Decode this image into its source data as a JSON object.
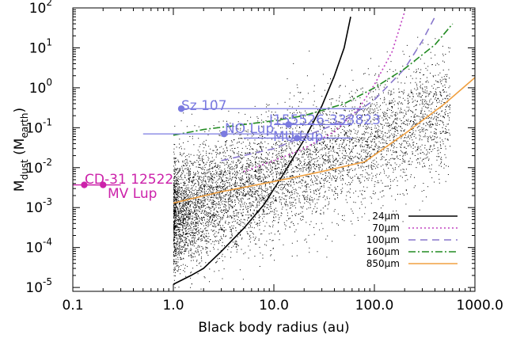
{
  "chart_data": {
    "type": "scatter",
    "x_scale": "log",
    "y_scale": "log",
    "xlim": [
      0.1,
      1000
    ],
    "ylim": [
      8e-06,
      100
    ],
    "xlabel_parts": {
      "main": "Black body radius (au)"
    },
    "ylabel_parts": {
      "main": "M",
      "sub1": "dust",
      "paren_open": " (M",
      "sub2": "earth",
      "paren_close": ")"
    },
    "xticks": [
      {
        "value": 0.1,
        "label": "0.1"
      },
      {
        "value": 1,
        "label": "1.0"
      },
      {
        "value": 10,
        "label": "10.0"
      },
      {
        "value": 100,
        "label": "100.0"
      },
      {
        "value": 1000,
        "label": "1000.0"
      }
    ],
    "yticks": [
      {
        "value": 1e-05,
        "base": "10",
        "exp": "-5"
      },
      {
        "value": 0.0001,
        "base": "10",
        "exp": "-4"
      },
      {
        "value": 0.001,
        "base": "10",
        "exp": "-3"
      },
      {
        "value": 0.01,
        "base": "10",
        "exp": "-2"
      },
      {
        "value": 0.1,
        "base": "10",
        "exp": "-1"
      },
      {
        "value": 1,
        "base": "10",
        "exp": "0"
      },
      {
        "value": 10,
        "base": "10",
        "exp": "1"
      },
      {
        "value": 100,
        "base": "10",
        "exp": "2"
      }
    ],
    "legend": [
      {
        "label": "24μm",
        "color": "#000000",
        "dash": ""
      },
      {
        "label": "70μm",
        "color": "#c040c0",
        "dash": "2,3"
      },
      {
        "label": "100μm",
        "color": "#8877cc",
        "dash": "9,6"
      },
      {
        "label": "160μm",
        "color": "#228b22",
        "dash": "9,3,2,3"
      },
      {
        "label": "850μm",
        "color": "#f0a040",
        "dash": ""
      }
    ],
    "sensitivity_curves": [
      {
        "name": "24μm",
        "color": "#000000",
        "dash": "",
        "x": [
          1.0,
          1.5,
          2.0,
          3.0,
          5.0,
          8.0,
          12.0,
          20.0,
          30.0,
          40.0,
          50.0,
          58.0
        ],
        "y": [
          1.2e-05,
          2e-05,
          3e-05,
          8e-05,
          0.0003,
          0.0012,
          0.006,
          0.05,
          0.35,
          2.0,
          10,
          60
        ]
      },
      {
        "name": "70μm",
        "color": "#c040c0",
        "dash": "2,3",
        "x": [
          5.0,
          10.0,
          20.0,
          40.0,
          70.0,
          100.0,
          150.0,
          200.0
        ],
        "y": [
          0.008,
          0.015,
          0.03,
          0.08,
          0.3,
          1.2,
          8,
          80
        ]
      },
      {
        "name": "100μm",
        "color": "#8877cc",
        "dash": "9,6",
        "x": [
          3.0,
          10.0,
          20.0,
          50.0,
          100.0,
          200.0,
          300.0,
          400.0
        ],
        "y": [
          0.015,
          0.03,
          0.06,
          0.15,
          0.5,
          3,
          15,
          60
        ]
      },
      {
        "name": "160μm",
        "color": "#228b22",
        "dash": "9,3,2,3",
        "x": [
          1.0,
          2.0,
          5.0,
          10.0,
          20.0,
          50.0,
          100.0,
          200.0,
          400.0,
          600.0
        ],
        "y": [
          0.065,
          0.09,
          0.12,
          0.15,
          0.2,
          0.4,
          1.0,
          3.0,
          12,
          40
        ]
      },
      {
        "name": "850μm",
        "color": "#f0a040",
        "dash": "",
        "x": [
          1.0,
          3.0,
          10.0,
          30.0,
          80.0,
          200.0,
          500.0,
          1000.0
        ],
        "y": [
          0.0013,
          0.0025,
          0.0045,
          0.008,
          0.014,
          0.07,
          0.4,
          1.8
        ]
      }
    ],
    "stars": [
      {
        "name": "Sz 107",
        "x": 1.2,
        "y": 0.3,
        "xerr": [
          1.2,
          80
        ],
        "color": "#7a7ae0"
      },
      {
        "name": "NO Lup",
        "x": 3.2,
        "y": 0.07,
        "xerr": [
          0.5,
          25
        ],
        "color": "#7a7ae0"
      },
      {
        "name": "MU Lup",
        "x": 17,
        "y": 0.055,
        "xerr": [
          5,
          60
        ],
        "color": "#7a7ae0"
      },
      {
        "name": "J155526-333823",
        "x": 14,
        "y": 0.12,
        "xerr": [
          10,
          60
        ],
        "color": "#7a7ae0"
      },
      {
        "name": "CD-31 12522",
        "x": 0.13,
        "y": 0.0037,
        "xerr": [
          0.1,
          0.2
        ],
        "color": "#cc22aa"
      },
      {
        "name": "MV Lup",
        "x": 0.2,
        "y": 0.0037,
        "xerr": [
          0.14,
          0.3
        ],
        "color": "#cc22aa"
      }
    ],
    "grid": false
  }
}
